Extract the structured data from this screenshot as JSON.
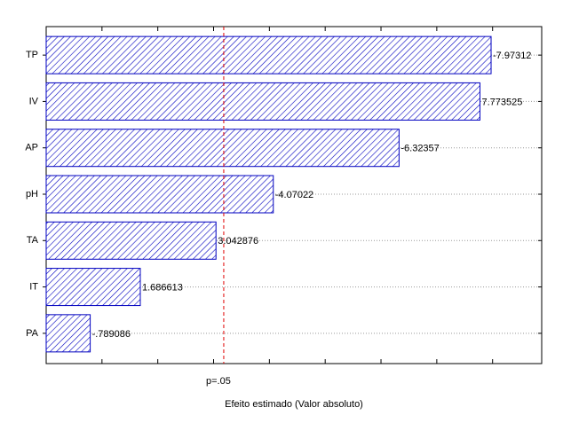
{
  "chart_data": {
    "type": "pareto",
    "categories": [
      "TP",
      "IV",
      "AP",
      "pH",
      "TA",
      "IT",
      "PA"
    ],
    "values": [
      7.97312,
      7.773525,
      6.32357,
      4.07022,
      3.042876,
      1.686613,
      0.789086
    ],
    "value_labels": [
      "-7.97312",
      "7.773525",
      "-6.32357",
      "-4.07022",
      "3.042876",
      "1.686613",
      "-.789086"
    ],
    "color": "#0000c0",
    "x_label": "Efeito estimado (Valor absoluto)",
    "xlim": [
      0,
      8.88
    ],
    "xticks": [
      0,
      1,
      2,
      3,
      4,
      5,
      6,
      7,
      8
    ],
    "threshold": {
      "value": 3.182,
      "label": "p=.05",
      "color": "#e00000"
    },
    "grid": true
  }
}
